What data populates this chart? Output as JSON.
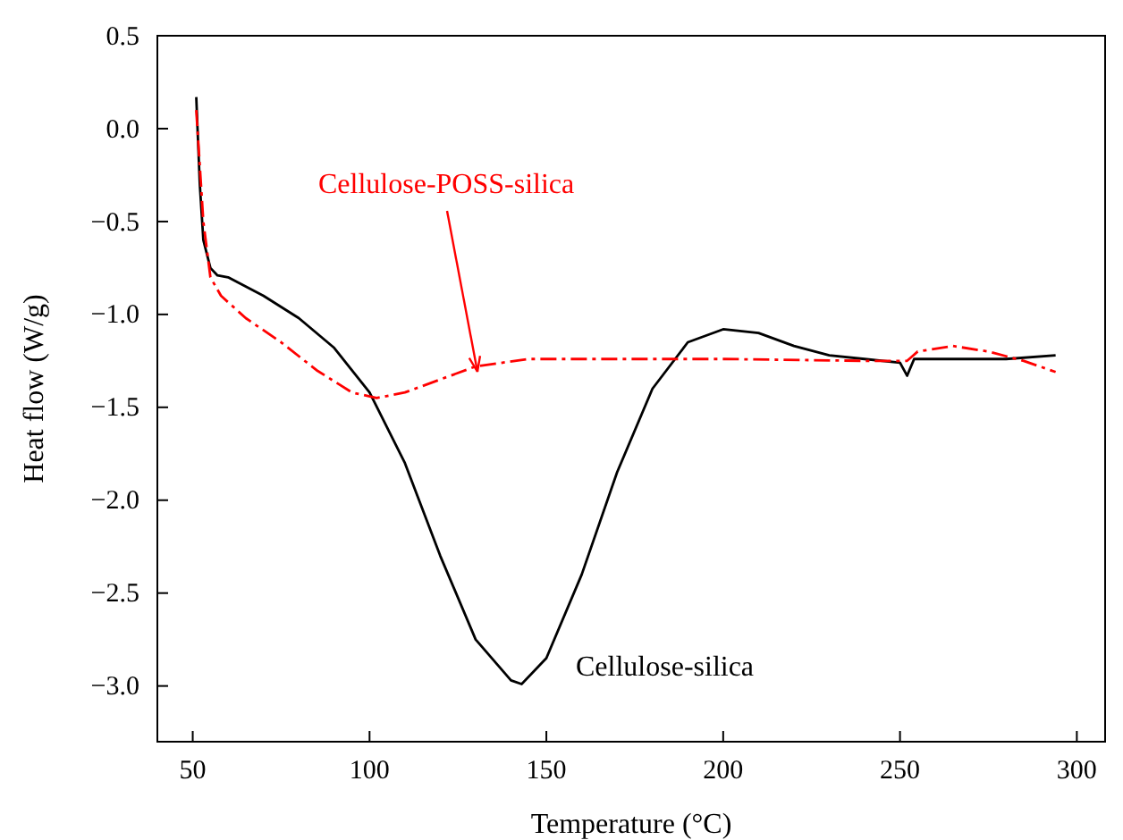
{
  "chart_data": {
    "type": "line",
    "xlabel": "Temperature (°C)",
    "ylabel": "Heat flow (W/g)",
    "xlim": [
      40,
      308
    ],
    "xticks": [
      50,
      100,
      150,
      200,
      250,
      300
    ],
    "ylim": [
      -3.3,
      0.5
    ],
    "yticks": [
      {
        "value": 0.5,
        "label": "0.5"
      },
      {
        "value": 0,
        "label": "0.0"
      },
      {
        "value": -0.5,
        "label": "−0.5"
      },
      {
        "value": -1,
        "label": "−1.0"
      },
      {
        "value": -1.5,
        "label": "−1.5"
      },
      {
        "value": -2,
        "label": "−2.0"
      },
      {
        "value": -2.5,
        "label": "−2.5"
      },
      {
        "value": -3,
        "label": "−3.0"
      }
    ],
    "grid": false,
    "series": [
      {
        "name": "Cellulose-silica",
        "color": "#000000",
        "line_style": "solid",
        "x": [
          51,
          52,
          53,
          55,
          57,
          60,
          70,
          80,
          90,
          100,
          110,
          120,
          130,
          140,
          143,
          150,
          160,
          170,
          180,
          190,
          200,
          210,
          220,
          230,
          240,
          250,
          252,
          254,
          260,
          280,
          294
        ],
        "values": [
          0.17,
          -0.3,
          -0.6,
          -0.75,
          -0.79,
          -0.8,
          -0.9,
          -1.02,
          -1.18,
          -1.42,
          -1.8,
          -2.3,
          -2.75,
          -2.97,
          -2.99,
          -2.85,
          -2.4,
          -1.85,
          -1.4,
          -1.15,
          -1.08,
          -1.1,
          -1.17,
          -1.22,
          -1.24,
          -1.26,
          -1.33,
          -1.24,
          -1.24,
          -1.24,
          -1.22
        ]
      },
      {
        "name": "Cellulose-POSS-silica",
        "color": "#ff0000",
        "line_style": "dashed",
        "x": [
          51,
          53,
          55,
          58,
          65,
          75,
          85,
          95,
          102,
          110,
          120,
          130,
          145,
          160,
          200,
          240,
          252,
          255,
          265,
          275,
          285,
          294
        ],
        "values": [
          0.1,
          -0.5,
          -0.8,
          -0.9,
          -1.02,
          -1.15,
          -1.3,
          -1.42,
          -1.45,
          -1.42,
          -1.35,
          -1.28,
          -1.24,
          -1.24,
          -1.24,
          -1.25,
          -1.25,
          -1.2,
          -1.17,
          -1.2,
          -1.25,
          -1.31
        ]
      }
    ]
  }
}
